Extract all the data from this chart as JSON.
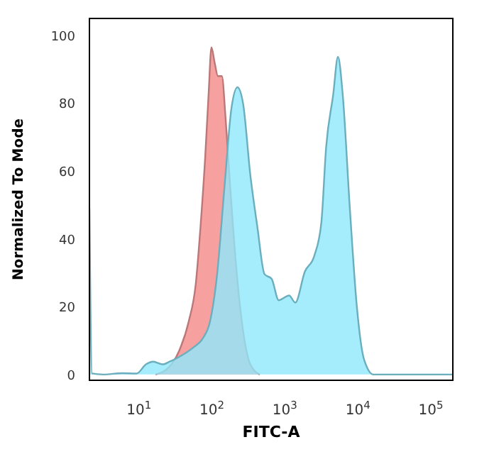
{
  "chart_data": {
    "type": "area",
    "xlabel": "FITC-A",
    "ylabel": "Normalized To Mode",
    "log": "x",
    "xlim": [
      2.1,
      200000
    ],
    "ylim": [
      -1.7,
      105
    ],
    "xticks": [
      {
        "value": 10,
        "label": "10$^{1}$"
      },
      {
        "value": 100,
        "label": "10$^{2}$"
      },
      {
        "value": 1000,
        "label": "10$^{3}$"
      },
      {
        "value": 10000,
        "label": "10$^{4}$"
      },
      {
        "value": 100000,
        "label": "10$^{5}$"
      }
    ],
    "yticks": [
      0,
      20,
      40,
      60,
      80,
      100
    ],
    "series": [
      {
        "color": "#f7a0a0",
        "x": [
          16.9,
          26.4,
          35.6,
          48.1,
          60.2,
          69.8,
          81.1,
          90.1,
          98.6,
          109,
          121,
          137,
          154,
          179,
          214,
          268,
          336,
          453
        ],
        "values": [
          0,
          2.4,
          7,
          15.6,
          26.8,
          43.5,
          64.4,
          82.6,
          96.5,
          92,
          88,
          88,
          75.6,
          54.7,
          32.4,
          12.8,
          3,
          0
        ]
      },
      {
        "color": "#8ee8fb",
        "x": [
          2.1,
          2.28,
          3.26,
          5.93,
          9.29,
          12.5,
          15.7,
          21.1,
          26.4,
          35.6,
          55.8,
          75.3,
          94.2,
          118,
          148,
          185,
          224,
          268,
          336,
          420,
          526,
          658,
          824,
          1144,
          1389,
          1875,
          2528,
          3162,
          3673,
          4595,
          5336,
          6198,
          7762,
          9703,
          12140,
          16370,
          29800,
          200000
        ],
        "values": [
          49,
          0.3,
          0,
          0.4,
          0.3,
          3,
          3.8,
          3,
          3.8,
          5.2,
          8,
          10.7,
          15.6,
          29.6,
          54.7,
          78.4,
          84.7,
          79.8,
          58.9,
          43.5,
          29.6,
          28.2,
          21.9,
          23.3,
          21.2,
          30.3,
          35,
          44.9,
          67,
          82.6,
          93.7,
          82.6,
          49,
          19.8,
          4.5,
          0,
          0,
          0
        ]
      }
    ]
  }
}
